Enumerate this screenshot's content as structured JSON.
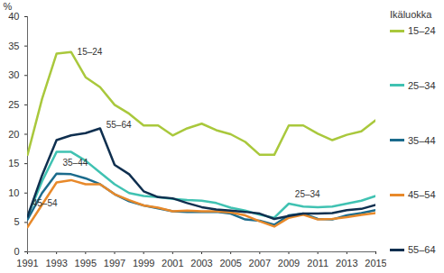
{
  "chart_data": {
    "type": "line",
    "y_label": "%",
    "legend_title": "Ikäluokka",
    "legend": "right",
    "grid": false,
    "x": [
      1991,
      1992,
      1993,
      1994,
      1995,
      1996,
      1997,
      1998,
      1999,
      2000,
      2001,
      2002,
      2003,
      2004,
      2005,
      2006,
      2007,
      2008,
      2009,
      2010,
      2011,
      2012,
      2013,
      2014,
      2015
    ],
    "xlim": [
      1991,
      2015
    ],
    "xticks": [
      1991,
      1993,
      1995,
      1997,
      1999,
      2001,
      2003,
      2005,
      2007,
      2009,
      2011,
      2013,
      2015
    ],
    "ylim": [
      0,
      40
    ],
    "yticks": [
      0,
      5,
      10,
      15,
      20,
      25,
      30,
      35,
      40
    ],
    "series": [
      {
        "name": "15–24",
        "color": "#a9c83c",
        "values": [
          16.5,
          26,
          33.7,
          34,
          29.7,
          28,
          25,
          23.5,
          21.5,
          21.5,
          19.8,
          21,
          21.8,
          20.7,
          20,
          18.7,
          16.5,
          16.5,
          21.5,
          21.5,
          20.1,
          19,
          19.9,
          20.5,
          22.4
        ]
      },
      {
        "name": "25–34",
        "color": "#40c2b2",
        "values": [
          6,
          12,
          17,
          17,
          15.5,
          13.5,
          11.5,
          10,
          9.5,
          9.3,
          9,
          8.8,
          8.7,
          8.3,
          7.5,
          7,
          6.3,
          5.8,
          8.2,
          7.7,
          7.6,
          7.7,
          8.2,
          8.7,
          9.5
        ]
      },
      {
        "name": "35–44",
        "color": "#1b6b8c",
        "values": [
          5.5,
          10,
          13.3,
          13.2,
          12.5,
          11.5,
          9.8,
          8.6,
          7.9,
          7.4,
          6.9,
          6.8,
          6.8,
          6.8,
          6.5,
          5.5,
          5.3,
          4.6,
          6.2,
          6.5,
          5.6,
          5.5,
          6.2,
          6.6,
          7.1
        ]
      },
      {
        "name": "45–54",
        "color": "#e8892a",
        "values": [
          4.2,
          8,
          11.8,
          12.2,
          11.5,
          11.5,
          9.8,
          8.8,
          7.9,
          7.5,
          6.9,
          7,
          6.9,
          6.9,
          6.7,
          6.2,
          5.2,
          4.3,
          5.8,
          6.3,
          5.5,
          5.6,
          5.9,
          6.3,
          6.6
        ]
      },
      {
        "name": "55–64",
        "color": "#0f2f4f",
        "values": [
          6,
          13,
          19,
          19.8,
          20.2,
          21,
          14.8,
          13.2,
          10.3,
          9.3,
          9.1,
          8.3,
          7.6,
          7.2,
          7,
          6.8,
          6.5,
          5.6,
          6.1,
          6.5,
          6.5,
          6.6,
          7.1,
          7.3,
          8
        ]
      }
    ],
    "annotations": [
      {
        "text": "15–24",
        "x": 1994.3,
        "y": 34
      },
      {
        "text": "55–64",
        "x": 1996.3,
        "y": 21.5
      },
      {
        "text": "35–44",
        "x": 1993.3,
        "y": 15.2
      },
      {
        "text": "45–54",
        "x": 1991.2,
        "y": 8.2
      },
      {
        "text": "25–34",
        "x": 2009.3,
        "y": 9.8
      }
    ]
  }
}
